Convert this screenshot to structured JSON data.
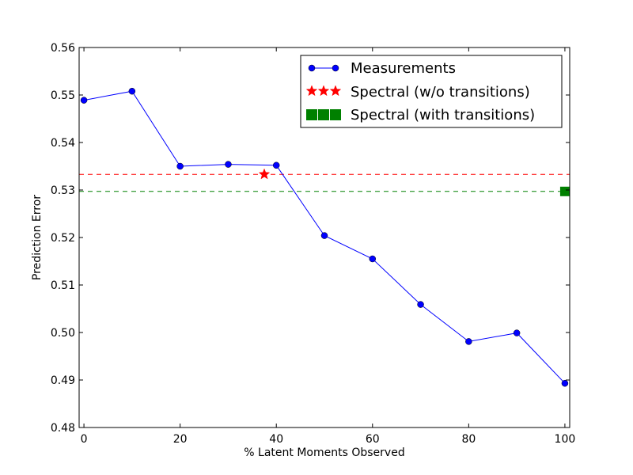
{
  "chart_data": {
    "type": "line",
    "xlabel": "% Latent Moments Observed",
    "ylabel": "Prediction Error",
    "xlim": [
      -1,
      101
    ],
    "ylim": [
      0.48,
      0.56
    ],
    "x_ticks": [
      0,
      20,
      40,
      60,
      80,
      100
    ],
    "x_tick_labels": [
      "0",
      "20",
      "40",
      "60",
      "80",
      "100"
    ],
    "y_ticks": [
      0.48,
      0.49,
      0.5,
      0.51,
      0.52,
      0.53,
      0.54,
      0.55,
      0.56
    ],
    "y_tick_labels": [
      "0.48",
      "0.49",
      "0.50",
      "0.51",
      "0.52",
      "0.53",
      "0.54",
      "0.55",
      "0.56"
    ],
    "grid": false,
    "legend_position": "top-right",
    "series": [
      {
        "name": "Measurements",
        "color": "#0000ff",
        "marker": "circle",
        "x": [
          0,
          10,
          20,
          30,
          40,
          50,
          60,
          70,
          80,
          90,
          100
        ],
        "y": [
          0.5489,
          0.5508,
          0.535,
          0.5354,
          0.5352,
          0.5204,
          0.5155,
          0.5059,
          0.4981,
          0.4999,
          0.4893
        ]
      },
      {
        "name": "Spectral (w/o transitions)",
        "color": "#ff0000",
        "marker": "star",
        "x": [
          37.5
        ],
        "y": [
          0.5333
        ],
        "hline": 0.5333
      },
      {
        "name": "Spectral (with transitions)",
        "color": "#008000",
        "marker": "square",
        "x": [
          100
        ],
        "y": [
          0.5297
        ],
        "hline": 0.5297
      }
    ]
  }
}
